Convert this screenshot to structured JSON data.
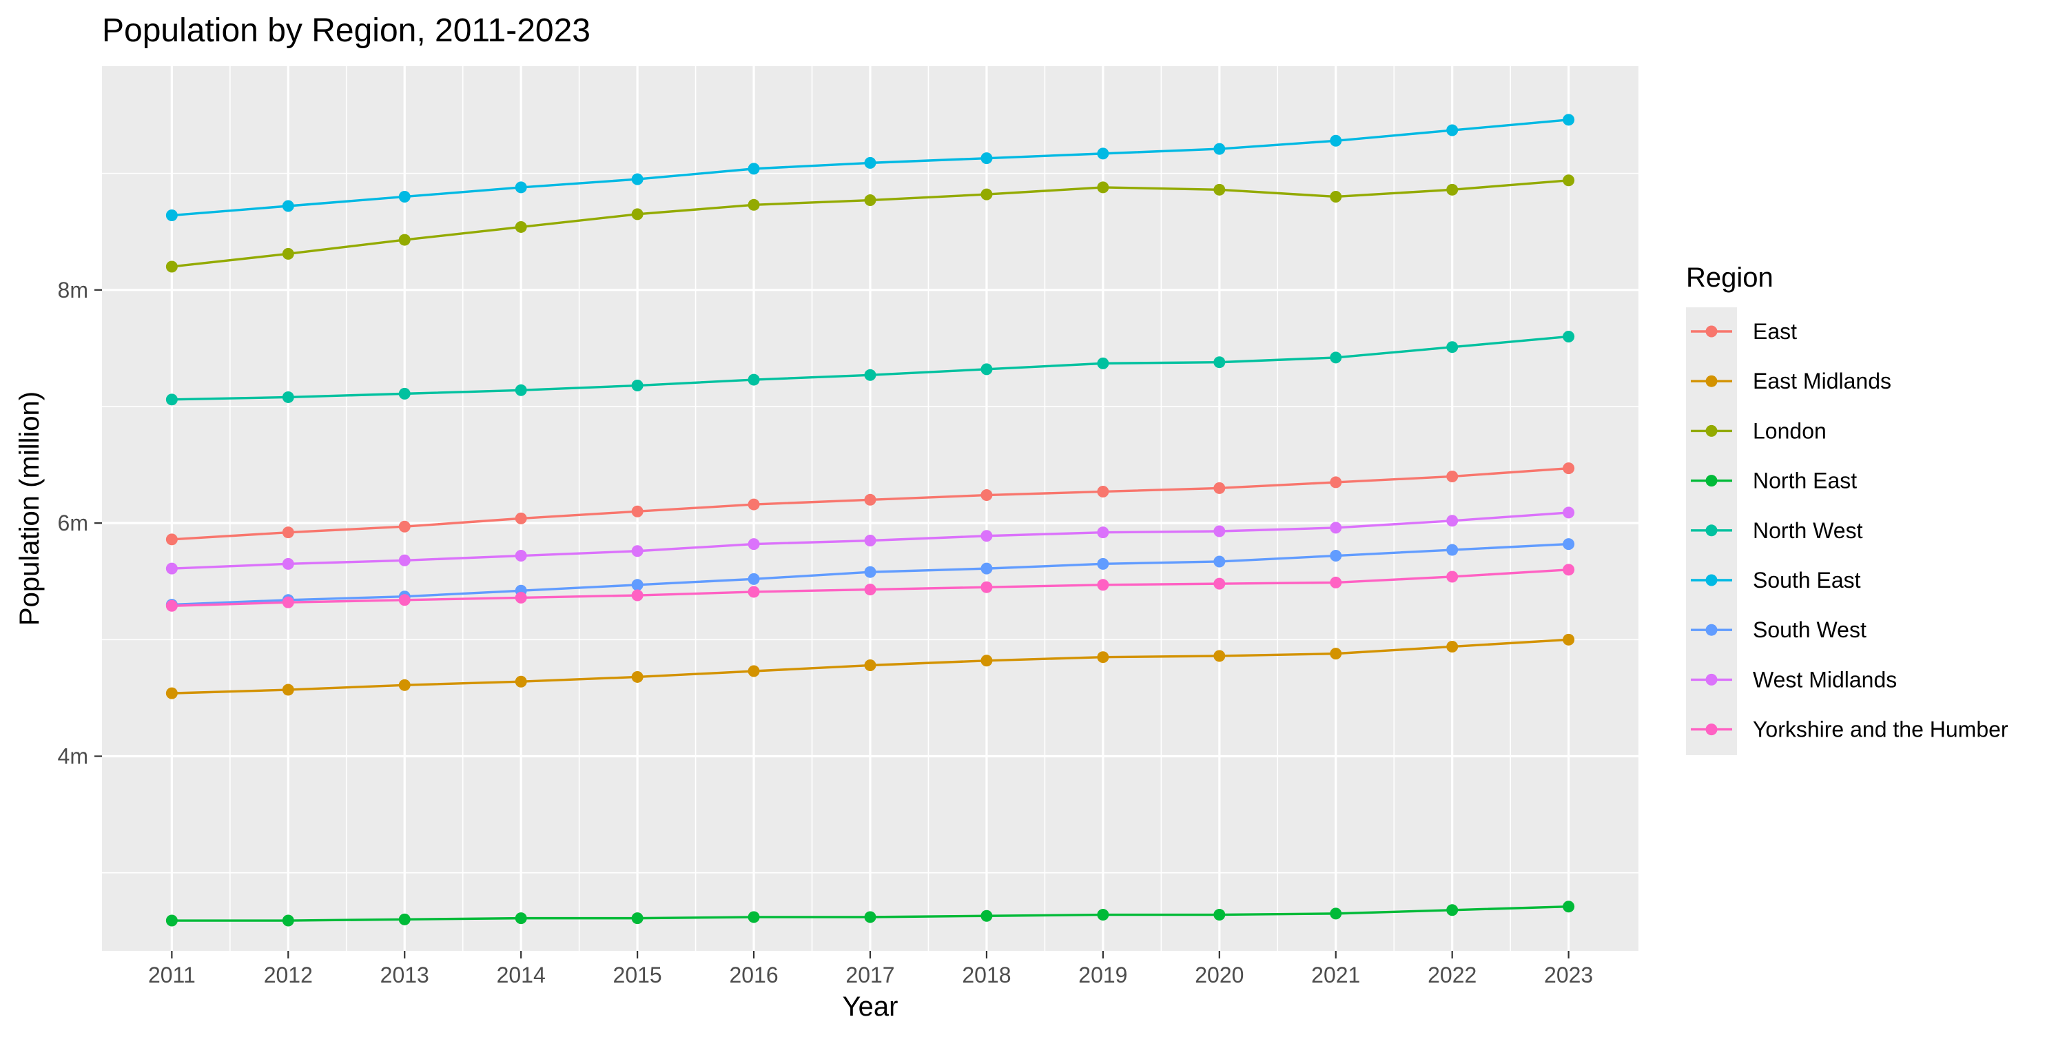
{
  "chart_data": {
    "type": "line",
    "title": "Population by Region, 2011-2023",
    "xlabel": "Year",
    "ylabel": "Population (million)",
    "x": [
      2011,
      2012,
      2013,
      2014,
      2015,
      2016,
      2017,
      2018,
      2019,
      2020,
      2021,
      2022,
      2023
    ],
    "x_tick_labels": [
      "2011",
      "2012",
      "2013",
      "2014",
      "2015",
      "2016",
      "2017",
      "2018",
      "2019",
      "2020",
      "2021",
      "2022",
      "2023"
    ],
    "xlim": [
      2010.4,
      2023.6
    ],
    "ylim": [
      2.33,
      9.92
    ],
    "y_ticks": [
      4,
      6,
      8
    ],
    "y_tick_labels": [
      "4m",
      "6m",
      "8m"
    ],
    "y_minor_ticks": [
      3,
      5,
      7,
      9
    ],
    "grid": true,
    "legend": {
      "title": "Region",
      "position": "right"
    },
    "series": [
      {
        "name": "East",
        "color": "#F8766D",
        "values": [
          5.86,
          5.92,
          5.97,
          6.04,
          6.1,
          6.16,
          6.2,
          6.24,
          6.27,
          6.3,
          6.35,
          6.4,
          6.47
        ]
      },
      {
        "name": "East Midlands",
        "color": "#D39200",
        "values": [
          4.54,
          4.57,
          4.61,
          4.64,
          4.68,
          4.73,
          4.78,
          4.82,
          4.85,
          4.86,
          4.88,
          4.94,
          5.0
        ]
      },
      {
        "name": "London",
        "color": "#93AA00",
        "values": [
          8.2,
          8.31,
          8.43,
          8.54,
          8.65,
          8.73,
          8.77,
          8.82,
          8.88,
          8.86,
          8.8,
          8.86,
          8.94
        ]
      },
      {
        "name": "North East",
        "color": "#00BA38",
        "values": [
          2.59,
          2.59,
          2.6,
          2.61,
          2.61,
          2.62,
          2.62,
          2.63,
          2.64,
          2.64,
          2.65,
          2.68,
          2.71
        ]
      },
      {
        "name": "North West",
        "color": "#00C19F",
        "values": [
          7.06,
          7.08,
          7.11,
          7.14,
          7.18,
          7.23,
          7.27,
          7.32,
          7.37,
          7.38,
          7.42,
          7.51,
          7.6
        ]
      },
      {
        "name": "South East",
        "color": "#00B9E3",
        "values": [
          8.64,
          8.72,
          8.8,
          8.88,
          8.95,
          9.04,
          9.09,
          9.13,
          9.17,
          9.21,
          9.28,
          9.37,
          9.46
        ]
      },
      {
        "name": "South West",
        "color": "#619CFF",
        "values": [
          5.3,
          5.34,
          5.37,
          5.42,
          5.47,
          5.52,
          5.58,
          5.61,
          5.65,
          5.67,
          5.72,
          5.77,
          5.82
        ]
      },
      {
        "name": "West Midlands",
        "color": "#DB72FB",
        "values": [
          5.61,
          5.65,
          5.68,
          5.72,
          5.76,
          5.82,
          5.85,
          5.89,
          5.92,
          5.93,
          5.96,
          6.02,
          6.09
        ]
      },
      {
        "name": "Yorkshire and the Humber",
        "color": "#FF61C3",
        "values": [
          5.29,
          5.32,
          5.34,
          5.36,
          5.38,
          5.41,
          5.43,
          5.45,
          5.47,
          5.48,
          5.49,
          5.54,
          5.6
        ]
      }
    ]
  }
}
